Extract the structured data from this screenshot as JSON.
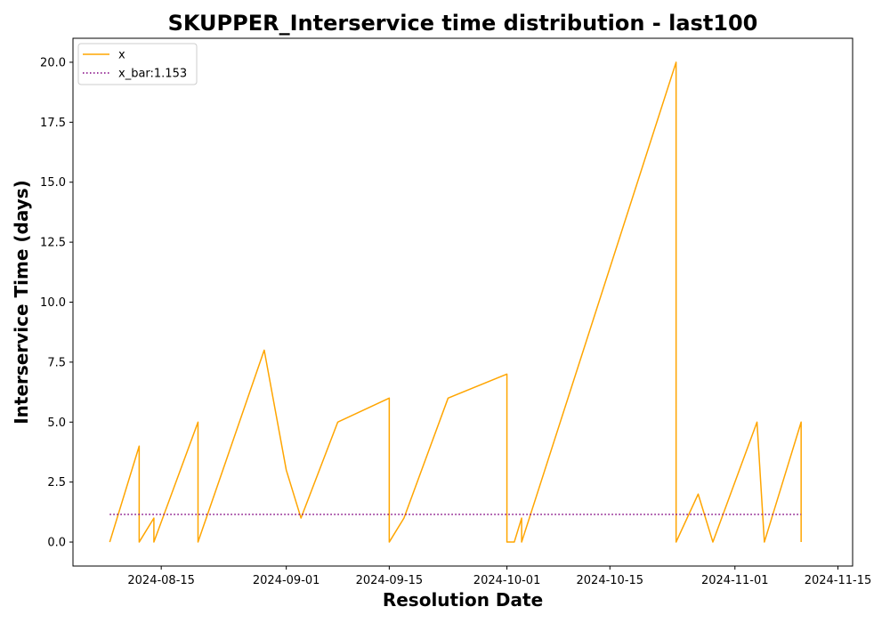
{
  "chart_data": {
    "type": "line",
    "title": "SKUPPER_Interservice time distribution - last100",
    "xlabel": "Resolution Date",
    "ylabel": "Interservice Time (days)",
    "xlim": [
      "2024-08-03",
      "2024-11-17"
    ],
    "ylim": [
      -1.0,
      21.0
    ],
    "x_ticks": [
      "2024-08-15",
      "2024-09-01",
      "2024-09-15",
      "2024-10-01",
      "2024-10-15",
      "2024-11-01",
      "2024-11-15"
    ],
    "y_ticks": [
      "0.0",
      "2.5",
      "5.0",
      "7.5",
      "10.0",
      "12.5",
      "15.0",
      "17.5",
      "20.0"
    ],
    "grid": false,
    "legend_position": "upper left",
    "series": [
      {
        "name": "x",
        "color": "#ffa500",
        "style": "solid",
        "points": [
          [
            "2024-08-08",
            0
          ],
          [
            "2024-08-12",
            4
          ],
          [
            "2024-08-12",
            0
          ],
          [
            "2024-08-14",
            1
          ],
          [
            "2024-08-14",
            0
          ],
          [
            "2024-08-20",
            5
          ],
          [
            "2024-08-20",
            0
          ],
          [
            "2024-08-29",
            8
          ],
          [
            "2024-09-01",
            3
          ],
          [
            "2024-09-03",
            1
          ],
          [
            "2024-09-08",
            5
          ],
          [
            "2024-09-15",
            6
          ],
          [
            "2024-09-15",
            0
          ],
          [
            "2024-09-17",
            1
          ],
          [
            "2024-09-23",
            6
          ],
          [
            "2024-10-01",
            7
          ],
          [
            "2024-10-01",
            0
          ],
          [
            "2024-10-02",
            0
          ],
          [
            "2024-10-03",
            1
          ],
          [
            "2024-10-03",
            0
          ],
          [
            "2024-10-24",
            20
          ],
          [
            "2024-10-24",
            0
          ],
          [
            "2024-10-27",
            2
          ],
          [
            "2024-10-28",
            1
          ],
          [
            "2024-10-29",
            0
          ],
          [
            "2024-11-04",
            5
          ],
          [
            "2024-11-05",
            0
          ],
          [
            "2024-11-10",
            5
          ],
          [
            "2024-11-10",
            0
          ]
        ]
      },
      {
        "name": "x_bar:1.153",
        "color": "#800080",
        "style": "dotted",
        "value": 1.153,
        "range": [
          "2024-08-08",
          "2024-11-10"
        ]
      }
    ]
  }
}
